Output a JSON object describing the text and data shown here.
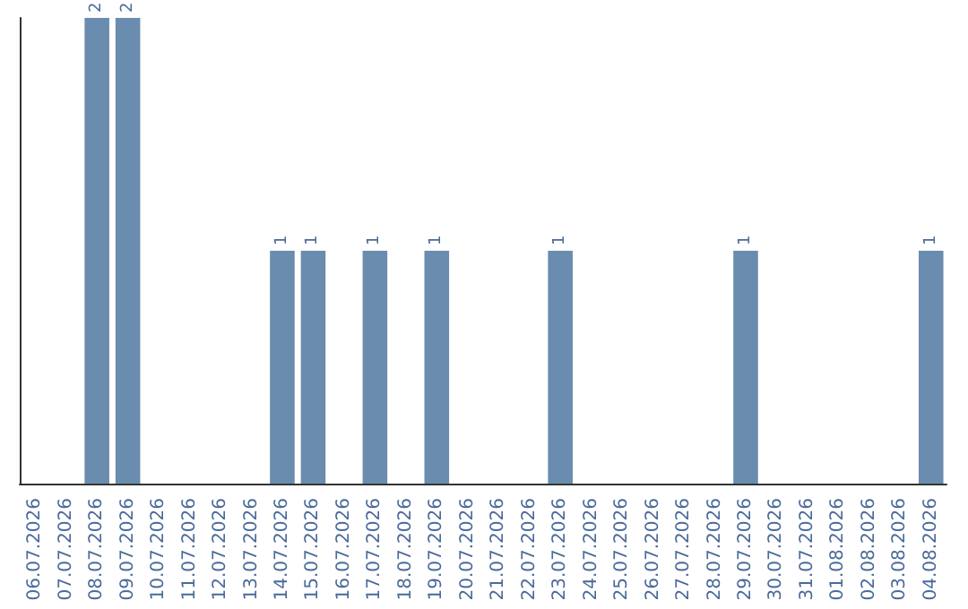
{
  "chart_data": {
    "type": "bar",
    "categories": [
      "06.07.2026",
      "07.07.2026",
      "08.07.2026",
      "09.07.2026",
      "10.07.2026",
      "11.07.2026",
      "12.07.2026",
      "13.07.2026",
      "14.07.2026",
      "15.07.2026",
      "16.07.2026",
      "17.07.2026",
      "18.07.2026",
      "19.07.2026",
      "20.07.2026",
      "21.07.2026",
      "22.07.2026",
      "23.07.2026",
      "24.07.2026",
      "25.07.2026",
      "26.07.2026",
      "27.07.2026",
      "28.07.2026",
      "29.07.2026",
      "30.07.2026",
      "31.07.2026",
      "01.08.2026",
      "02.08.2026",
      "03.08.2026",
      "04.08.2026"
    ],
    "values": [
      0,
      0,
      2,
      2,
      0,
      0,
      0,
      0,
      1,
      1,
      0,
      1,
      0,
      1,
      0,
      0,
      0,
      1,
      0,
      0,
      0,
      0,
      0,
      1,
      0,
      0,
      0,
      0,
      0,
      1
    ],
    "value_labels": [
      null,
      null,
      "2",
      "2",
      null,
      null,
      null,
      null,
      "1",
      "1",
      null,
      "1",
      null,
      "1",
      null,
      null,
      null,
      "1",
      null,
      null,
      null,
      null,
      null,
      "1",
      null,
      null,
      null,
      null,
      null,
      "1"
    ],
    "color": "#6a8caf",
    "grid": false,
    "tick_labels": "x"
  }
}
